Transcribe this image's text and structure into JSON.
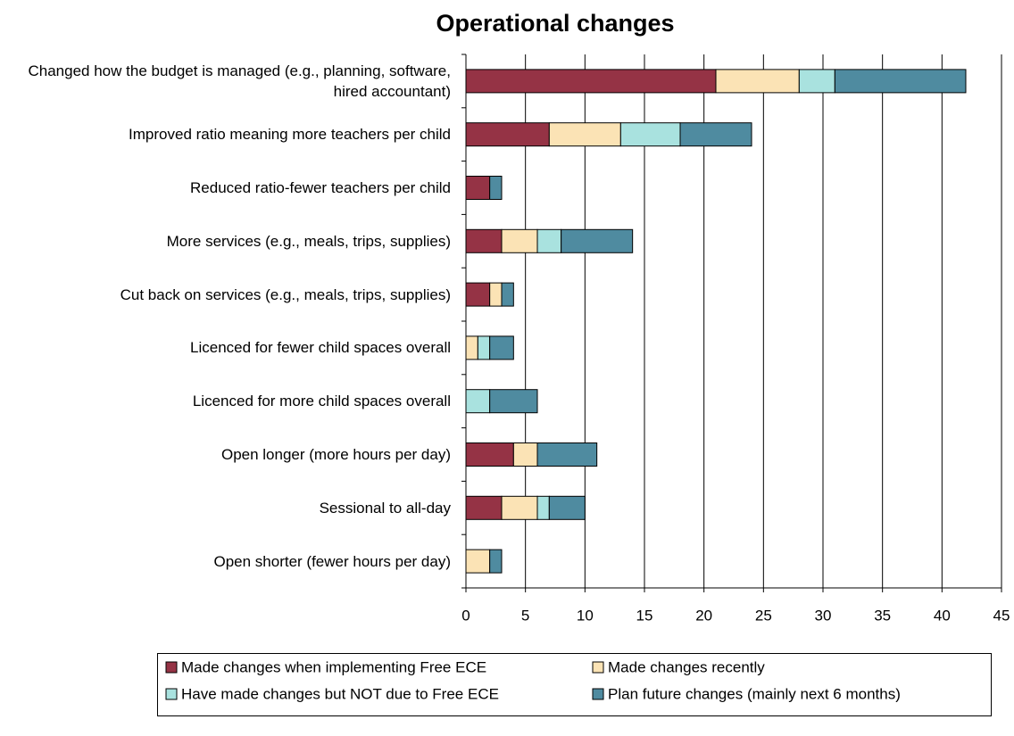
{
  "chart_data": {
    "type": "stacked_barh",
    "title": "Operational changes",
    "categories": [
      "Changed how the budget is managed (e.g., planning, software, hired accountant)",
      "Improved ratio meaning more teachers per child",
      "Reduced ratio-fewer teachers per child",
      "More services (e.g., meals, trips, supplies)",
      "Cut back on services (e.g., meals, trips, supplies)",
      "Licenced for fewer child spaces overall",
      "Licenced for more child spaces overall",
      "Open longer (more hours per day)",
      "Sessional to all-day",
      "Open shorter (fewer hours per day)"
    ],
    "series": [
      {
        "name": "Made changes when implementing Free ECE",
        "color": "#953345",
        "values": [
          21,
          7,
          2,
          3,
          2,
          0,
          0,
          4,
          3,
          0
        ]
      },
      {
        "name": "Made changes recently",
        "color": "#FBE3B5",
        "values": [
          7,
          6,
          0,
          3,
          1,
          1,
          0,
          2,
          3,
          2
        ]
      },
      {
        "name": "Have made changes but NOT due to Free ECE",
        "color": "#A9E2DF",
        "values": [
          3,
          5,
          0,
          2,
          0,
          1,
          2,
          0,
          1,
          0
        ]
      },
      {
        "name": "Plan future changes (mainly next 6 months)",
        "color": "#4F8BA0",
        "values": [
          11,
          6,
          1,
          6,
          1,
          2,
          4,
          5,
          3,
          1
        ]
      }
    ],
    "xlim": [
      0,
      45
    ],
    "xticks": [
      0,
      5,
      10,
      15,
      20,
      25,
      30,
      35,
      40,
      45
    ],
    "grid": true,
    "legend": "bottom"
  }
}
